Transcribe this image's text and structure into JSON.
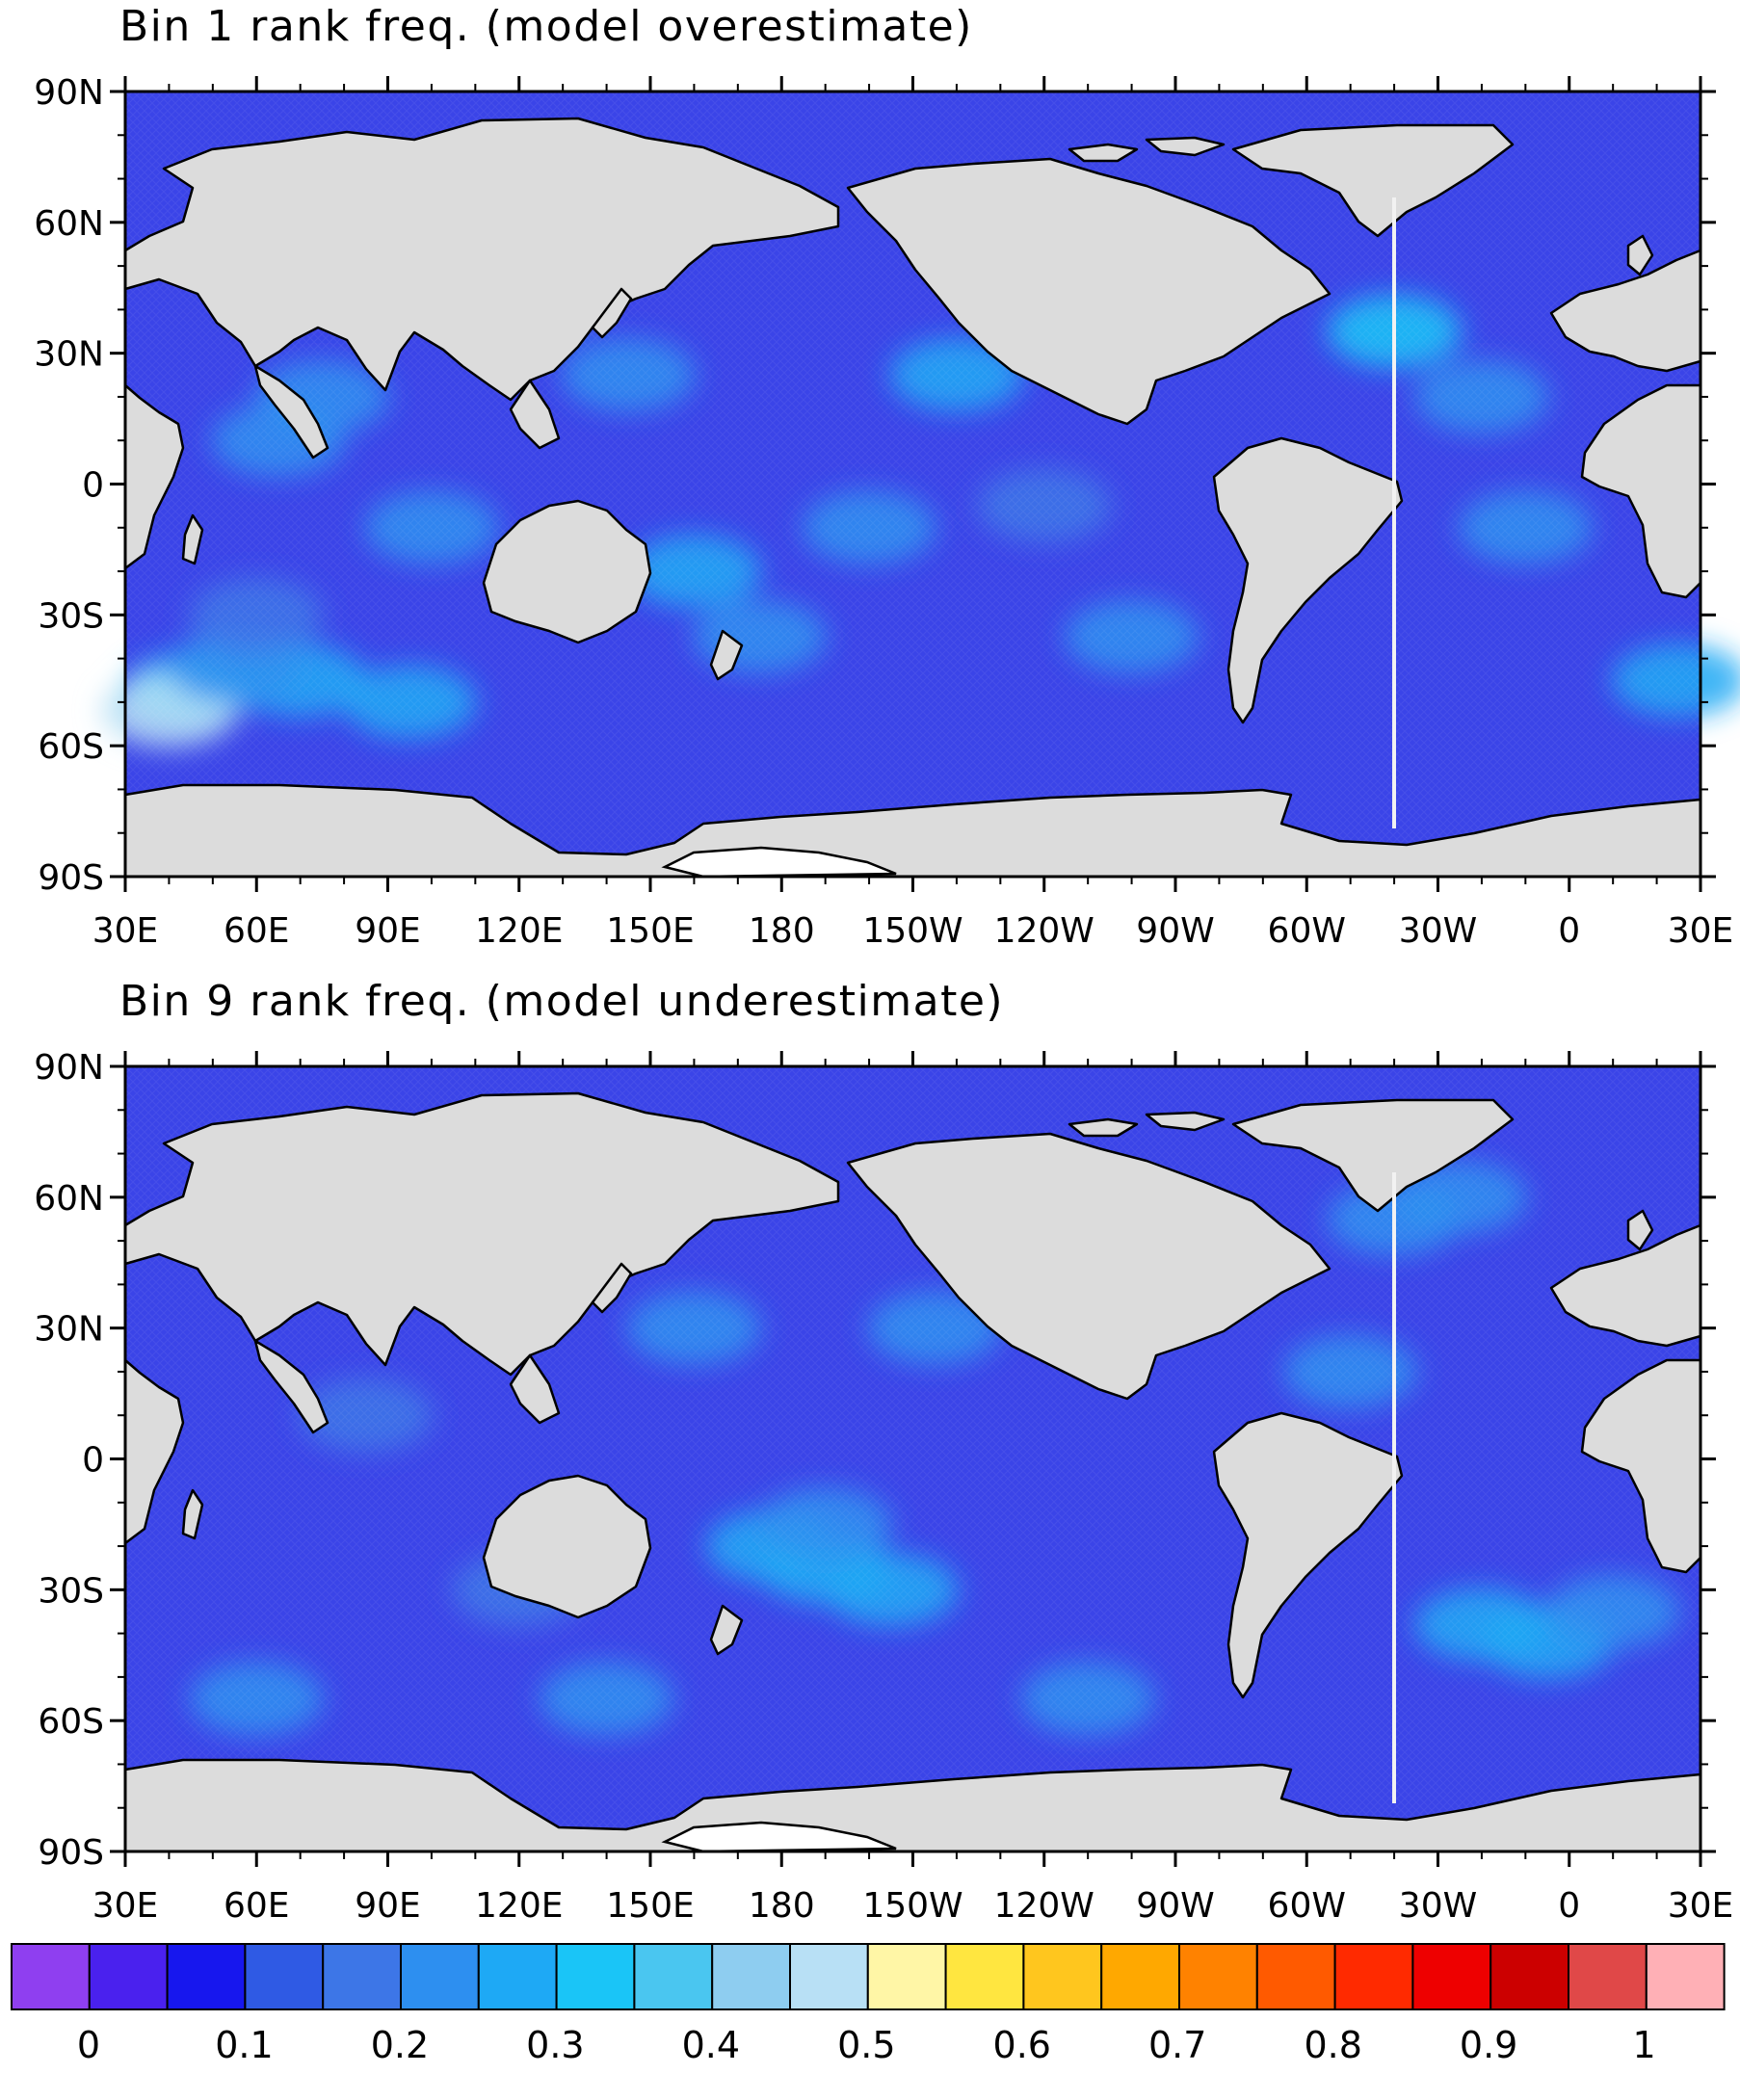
{
  "panels": [
    {
      "title": "Bin 1 rank freq. (model overestimate)",
      "blobs": [
        {
          "lon": 45,
          "lat": -47,
          "value": 0.37
        },
        {
          "lon": 40,
          "lat": -52,
          "value": 0.5
        },
        {
          "lon": 70,
          "lat": -45,
          "value": 0.32
        },
        {
          "lon": 95,
          "lat": -50,
          "value": 0.3
        },
        {
          "lon": 55,
          "lat": -42,
          "value": 0.28
        },
        {
          "lon": 75,
          "lat": 20,
          "value": 0.28
        },
        {
          "lon": 65,
          "lat": 10,
          "value": 0.26
        },
        {
          "lon": 120,
          "lat": 40,
          "value": 0.24
        },
        {
          "lon": 145,
          "lat": 25,
          "value": 0.24
        },
        {
          "lon": 160,
          "lat": -20,
          "value": 0.3
        },
        {
          "lon": 175,
          "lat": -35,
          "value": 0.26
        },
        {
          "lon": -140,
          "lat": 25,
          "value": 0.3
        },
        {
          "lon": -160,
          "lat": -10,
          "value": 0.24
        },
        {
          "lon": -40,
          "lat": 35,
          "value": 0.36
        },
        {
          "lon": -20,
          "lat": 20,
          "value": 0.26
        },
        {
          "lon": 25,
          "lat": -45,
          "value": 0.33
        },
        {
          "lon": -120,
          "lat": -5,
          "value": 0.22
        },
        {
          "lon": -100,
          "lat": -35,
          "value": 0.24
        },
        {
          "lon": 60,
          "lat": -30,
          "value": 0.22
        },
        {
          "lon": -10,
          "lat": -10,
          "value": 0.24
        },
        {
          "lon": 100,
          "lat": -10,
          "value": 0.24
        }
      ]
    },
    {
      "title": "Bin 9 rank freq. (model underestimate)",
      "blobs": [
        {
          "lon": 178,
          "lat": -20,
          "value": 0.32
        },
        {
          "lon": -170,
          "lat": -25,
          "value": 0.33
        },
        {
          "lon": -155,
          "lat": -30,
          "value": 0.3
        },
        {
          "lon": 190,
          "lat": -15,
          "value": 0.28
        },
        {
          "lon": -145,
          "lat": 30,
          "value": 0.28
        },
        {
          "lon": 160,
          "lat": 30,
          "value": 0.27
        },
        {
          "lon": -20,
          "lat": -38,
          "value": 0.33
        },
        {
          "lon": -5,
          "lat": -42,
          "value": 0.3
        },
        {
          "lon": 10,
          "lat": -35,
          "value": 0.27
        },
        {
          "lon": -40,
          "lat": 55,
          "value": 0.28
        },
        {
          "lon": -25,
          "lat": 60,
          "value": 0.26
        },
        {
          "lon": -110,
          "lat": -55,
          "value": 0.28
        },
        {
          "lon": 60,
          "lat": -55,
          "value": 0.26
        },
        {
          "lon": 140,
          "lat": -55,
          "value": 0.27
        },
        {
          "lon": -50,
          "lat": 20,
          "value": 0.24
        },
        {
          "lon": 85,
          "lat": 10,
          "value": 0.2
        },
        {
          "lon": 120,
          "lat": -30,
          "value": 0.22
        }
      ]
    }
  ],
  "axes": {
    "lon_ticks": [
      "30E",
      "60E",
      "90E",
      "120E",
      "150E",
      "180",
      "150W",
      "120W",
      "90W",
      "60W",
      "30W",
      "0",
      "30E"
    ],
    "lat_ticks": [
      "90N",
      "60N",
      "30N",
      "0",
      "30S",
      "60S",
      "90S"
    ],
    "lon_range": [
      30,
      390
    ],
    "lat_range": [
      -90,
      90
    ]
  },
  "colorbar": {
    "labels": [
      "0",
      "0.1",
      "0.2",
      "0.3",
      "0.4",
      "0.5",
      "0.6",
      "0.7",
      "0.8",
      "0.9",
      "1"
    ],
    "range": [
      0,
      1
    ],
    "colors": [
      "#8f3ff0",
      "#4a21ee",
      "#1717ee",
      "#2f5ae4",
      "#3d76e7",
      "#2d8ff0",
      "#1ea9f5",
      "#1ac5f7",
      "#4ac6f0",
      "#8ecdf0",
      "#b8e0f5",
      "#fff6a6",
      "#ffe640",
      "#ffc61e",
      "#ffa800",
      "#ff8200",
      "#ff5a00",
      "#ff2a00",
      "#ee0000",
      "#cc0000",
      "#e04848",
      "#ffb0b6"
    ]
  },
  "style": {
    "land_color": "#dcdcdc",
    "ocean_base_color": "#3a44e8"
  }
}
